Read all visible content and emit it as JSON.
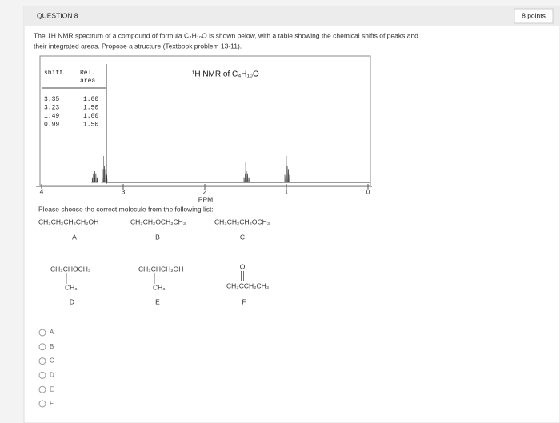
{
  "question": {
    "label": "QUESTION 8",
    "points": "8 points",
    "prompt": [
      "The 1H NMR spectrum of a compound of formula C₄H₁₀O is shown below, with a table showing the chemical shifts of peaks and",
      "their integrated areas.  Propose a structure (Textbook problem 13-11)."
    ]
  },
  "spectrum": {
    "title": "¹H NMR of C₄H₁₀O",
    "table": {
      "headers": [
        "shift",
        "Rel.",
        "area"
      ],
      "rows": [
        [
          "3.35",
          "1.00"
        ],
        [
          "3.23",
          "1.50"
        ],
        [
          "1.49",
          "1.00"
        ],
        [
          "0.99",
          "1.50"
        ]
      ]
    },
    "xticks": [
      4,
      3,
      2,
      1,
      0
    ],
    "xlabel": "PPM"
  },
  "choices": {
    "prompt": "Please choose the correct molecule from the following list:",
    "molecules": [
      {
        "formula": "CH₃CH₂CH₂CH₂OH",
        "letter": "A"
      },
      {
        "formula": "CH₃CH₂OCH₂CH₃",
        "letter": "B"
      },
      {
        "formula": "CH₃CH₂CH₂OCH₃",
        "letter": "C"
      },
      {
        "formula": "CH₃CHOCH₃",
        "branch": "CH₃",
        "letter": "D"
      },
      {
        "formula": "CH₃CHCH₂OH",
        "branch": "CH₃",
        "letter": "E"
      },
      {
        "formula": "CH₃CCH₂CH₃",
        "branch": "O",
        "letter": "F"
      }
    ]
  },
  "options": [
    "A",
    "B",
    "C",
    "D",
    "E",
    "F"
  ]
}
